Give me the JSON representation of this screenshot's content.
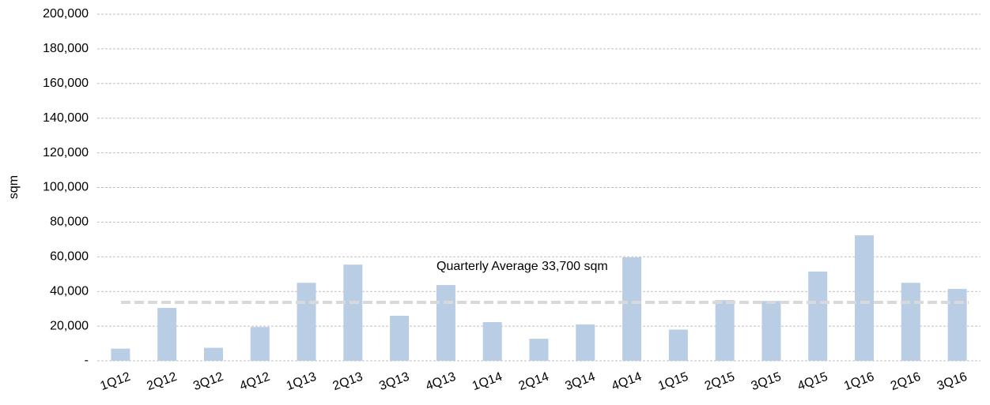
{
  "chart_data": {
    "type": "bar",
    "y_label": "sqm",
    "categories": [
      "1Q12",
      "2Q12",
      "3Q12",
      "4Q12",
      "1Q13",
      "2Q13",
      "3Q13",
      "4Q13",
      "1Q14",
      "2Q14",
      "3Q14",
      "4Q14",
      "1Q15",
      "2Q15",
      "3Q15",
      "4Q15",
      "1Q16",
      "2Q16",
      "3Q16"
    ],
    "values": [
      7000,
      30500,
      7500,
      19500,
      45000,
      55500,
      26000,
      43700,
      22300,
      12700,
      21000,
      59700,
      18000,
      35000,
      34500,
      51500,
      72400,
      45000,
      41500
    ],
    "color": "#b9cde5",
    "ylim": [
      0,
      200000
    ],
    "yticks": [
      {
        "value": 0,
        "label": "-"
      },
      {
        "value": 20000,
        "label": "20,000"
      },
      {
        "value": 40000,
        "label": "40,000"
      },
      {
        "value": 60000,
        "label": "60,000"
      },
      {
        "value": 80000,
        "label": "80,000"
      },
      {
        "value": 100000,
        "label": "100,000"
      },
      {
        "value": 120000,
        "label": "120,000"
      },
      {
        "value": 140000,
        "label": "140,000"
      },
      {
        "value": 160000,
        "label": "160,000"
      },
      {
        "value": 180000,
        "label": "180,000"
      },
      {
        "value": 200000,
        "label": "200,000"
      }
    ],
    "grid": true,
    "average": {
      "value": 33700,
      "label": "Quarterly Average 33,700 sqm",
      "color": "#d9d9d9"
    }
  }
}
